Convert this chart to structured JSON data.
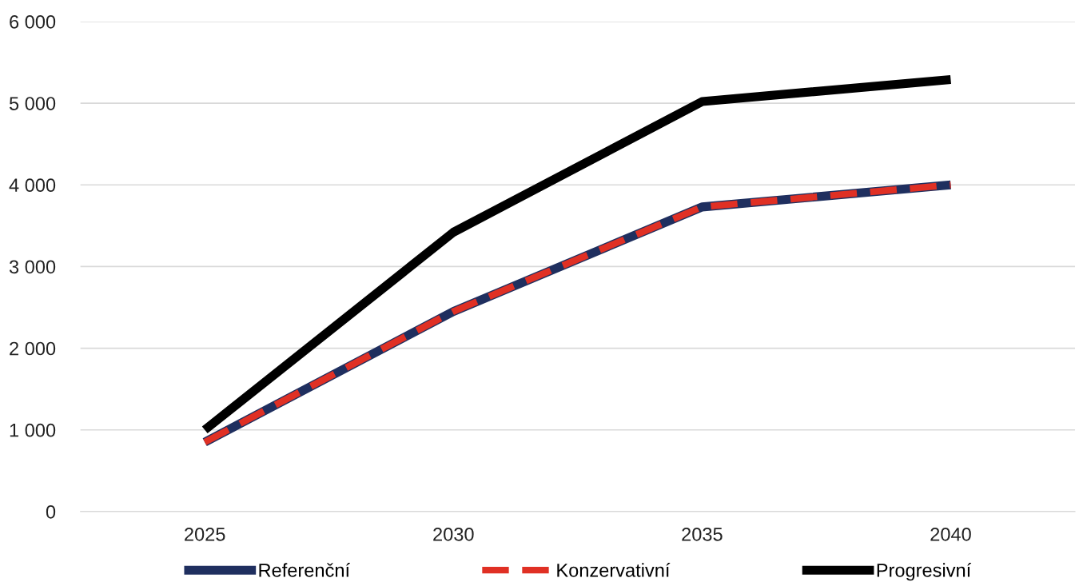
{
  "chart_data": {
    "type": "line",
    "categories": [
      "2025",
      "2030",
      "2035",
      "2040"
    ],
    "series": [
      {
        "name": "Referenční",
        "color": "#1f2f5f",
        "values": [
          850,
          2450,
          3730,
          4000
        ],
        "line_style": "solid"
      },
      {
        "name": "Konzervativní",
        "color": "#e03024",
        "values": [
          850,
          2450,
          3730,
          4000
        ],
        "line_style": "dashed"
      },
      {
        "name": "Progresivní",
        "color": "#000000",
        "values": [
          1000,
          3420,
          5020,
          5290
        ],
        "line_style": "solid"
      }
    ],
    "ylim": [
      0,
      6000
    ],
    "yticks": [
      0,
      {
        "value": 1000,
        "label": "1 000"
      },
      {
        "value": 2000,
        "label": "2 000"
      },
      {
        "value": 3000,
        "label": "3 000"
      },
      {
        "value": 4000,
        "label": "4 000"
      },
      {
        "value": 5000,
        "label": "5 000"
      },
      {
        "value": 6000,
        "label": "6 000"
      }
    ],
    "grid": "y",
    "legend": "bottom",
    "marker": "none"
  }
}
